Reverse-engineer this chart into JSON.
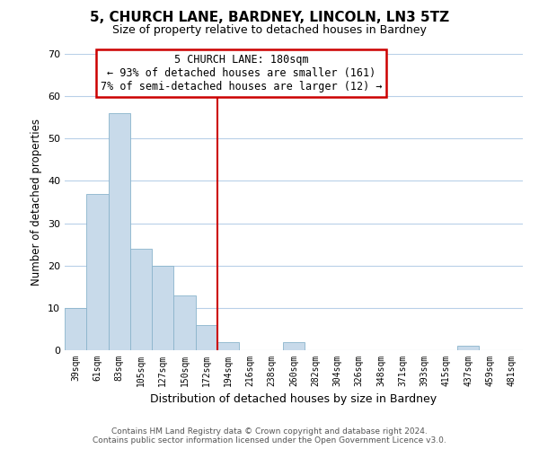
{
  "title": "5, CHURCH LANE, BARDNEY, LINCOLN, LN3 5TZ",
  "subtitle": "Size of property relative to detached houses in Bardney",
  "xlabel": "Distribution of detached houses by size in Bardney",
  "ylabel": "Number of detached properties",
  "bar_color": "#c8daea",
  "bar_edge_color": "#8ab4cc",
  "grid_color": "#b8d0e8",
  "background_color": "#ffffff",
  "bin_labels": [
    "39sqm",
    "61sqm",
    "83sqm",
    "105sqm",
    "127sqm",
    "150sqm",
    "172sqm",
    "194sqm",
    "216sqm",
    "238sqm",
    "260sqm",
    "282sqm",
    "304sqm",
    "326sqm",
    "348sqm",
    "371sqm",
    "393sqm",
    "415sqm",
    "437sqm",
    "459sqm",
    "481sqm"
  ],
  "bar_heights": [
    10,
    37,
    56,
    24,
    20,
    13,
    6,
    2,
    0,
    0,
    2,
    0,
    0,
    0,
    0,
    0,
    0,
    0,
    1,
    0,
    0
  ],
  "ylim": [
    0,
    70
  ],
  "yticks": [
    0,
    10,
    20,
    30,
    40,
    50,
    60,
    70
  ],
  "vline_x": 6.5,
  "vline_color": "#cc0000",
  "annotation_title": "5 CHURCH LANE: 180sqm",
  "annotation_line1": "← 93% of detached houses are smaller (161)",
  "annotation_line2": "7% of semi-detached houses are larger (12) →",
  "annotation_box_color": "#ffffff",
  "annotation_box_edge": "#cc0000",
  "footer_line1": "Contains HM Land Registry data © Crown copyright and database right 2024.",
  "footer_line2": "Contains public sector information licensed under the Open Government Licence v3.0."
}
